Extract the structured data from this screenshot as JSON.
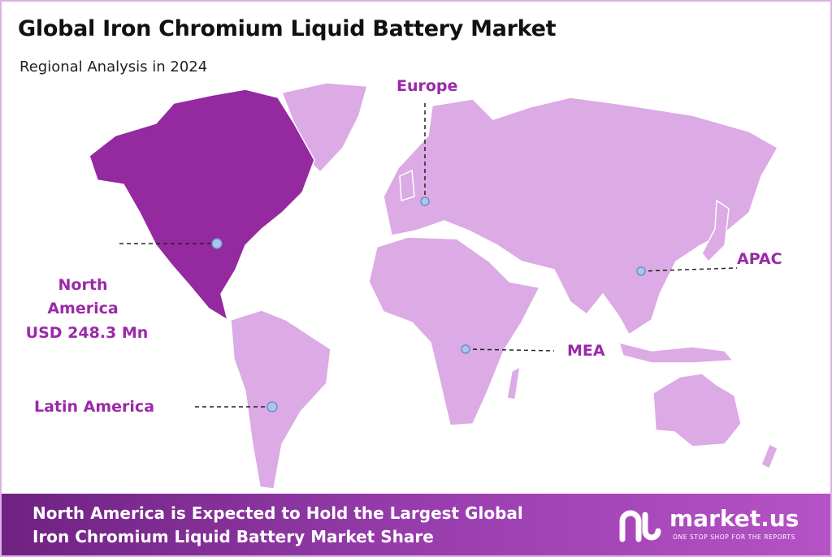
{
  "header": {
    "title": "Global Iron Chromium Liquid Battery Market",
    "subtitle": "Regional Analysis in 2024"
  },
  "regions": [
    {
      "name": "Europe"
    },
    {
      "name": "APAC"
    },
    {
      "name": "MEA"
    },
    {
      "name": "Latin America"
    },
    {
      "name": "North America",
      "value": "USD 248.3 Mn"
    }
  ],
  "footer": {
    "lines": [
      "North America is Expected to Hold the Largest Global",
      "Iron Chromium Liquid Battery Market Share"
    ]
  },
  "brand": {
    "name": "market.us",
    "tagline": "ONE STOP SHOP FOR THE REPORTS"
  }
}
